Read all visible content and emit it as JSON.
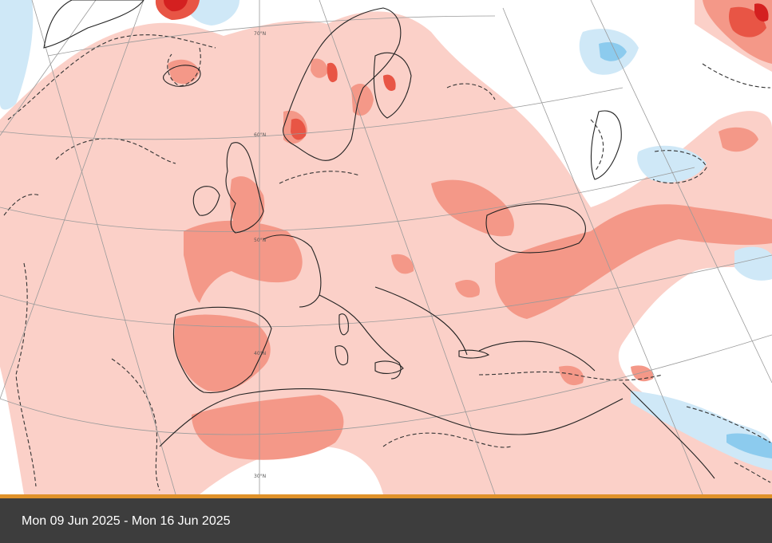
{
  "map": {
    "latitude_labels": [
      "70°N",
      "60°N",
      "50°N",
      "40°N",
      "30°N"
    ],
    "colors": {
      "land_outline": "#222222",
      "graticule": "#9a9a9a",
      "warm_weak": "#fbd0c8",
      "warm_moderate": "#f49888",
      "warm_strong": "#e85545",
      "warm_extreme": "#d42020",
      "cool_weak": "#cfe8f7",
      "cool_moderate": "#8ccbee"
    }
  },
  "footer": {
    "date_range": "Mon 09 Jun 2025 - Mon 16 Jun 2025",
    "accent_color": "#e0922a",
    "background_color": "#3d3d3d"
  }
}
